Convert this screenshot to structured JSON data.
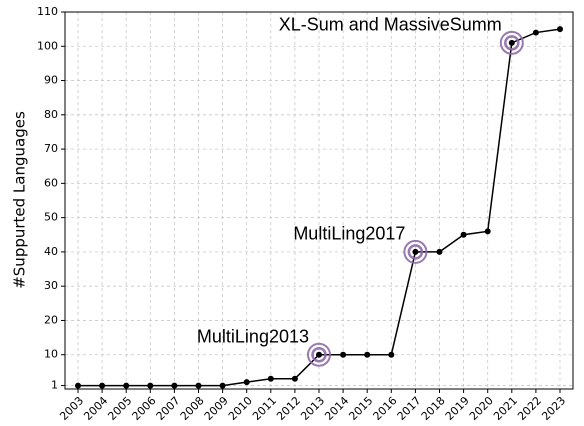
{
  "chart_data": {
    "type": "line",
    "y_label": "#Suppurted Languages",
    "categories": [
      "2003",
      "2004",
      "2005",
      "2006",
      "2007",
      "2008",
      "2009",
      "2010",
      "2011",
      "2012",
      "2013",
      "2014",
      "2015",
      "2016",
      "2017",
      "2018",
      "2019",
      "2020",
      "2021",
      "2022",
      "2023"
    ],
    "series": [
      {
        "color": "#000000",
        "values": [
          1,
          1,
          1,
          1,
          1,
          1,
          1,
          2,
          3,
          3,
          10,
          10,
          10,
          10,
          40,
          40,
          45,
          46,
          101,
          104,
          105
        ]
      }
    ],
    "ylim": [
      0,
      110
    ],
    "yticks": [
      1,
      10,
      20,
      30,
      40,
      50,
      60,
      70,
      80,
      90,
      100,
      110
    ],
    "grid": true,
    "highlight_color": "#8e6aa8",
    "annotations": [
      {
        "text": "MultiLing2013",
        "x": "2013"
      },
      {
        "text": "MultiLing2017",
        "x": "2017"
      },
      {
        "text": "XL-Sum and MassiveSumm",
        "x": "2021"
      }
    ]
  }
}
